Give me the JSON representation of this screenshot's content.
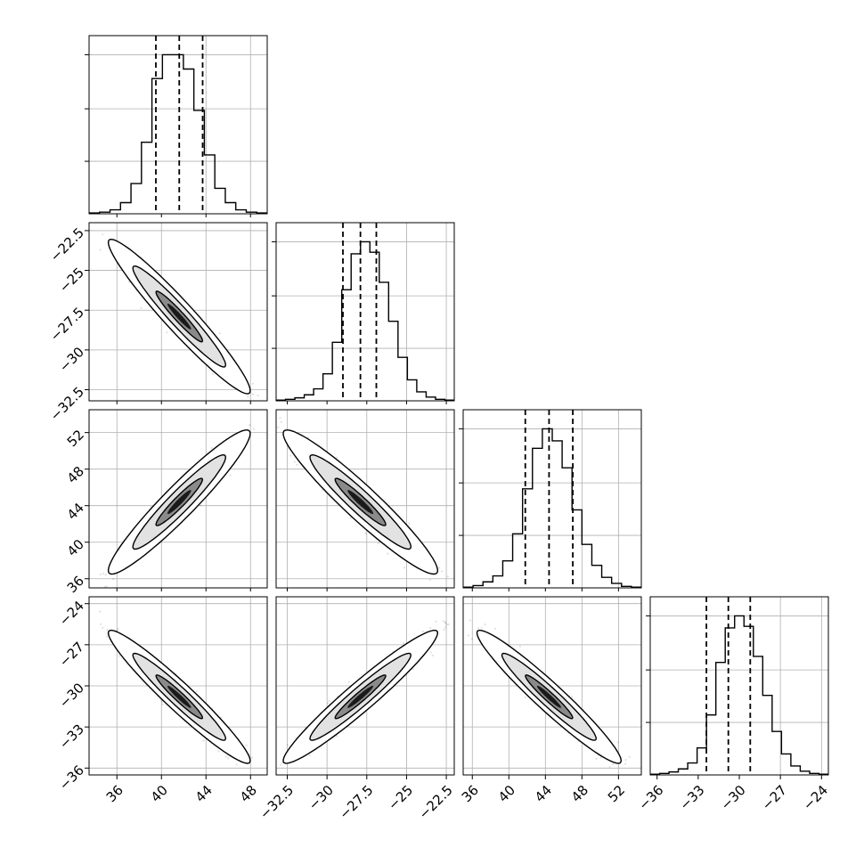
{
  "figure": {
    "type": "corner-plot"
  },
  "chart_data": {
    "type": "corner",
    "parameters": [
      {
        "median": 41.6,
        "q16": 39.5,
        "q84": 43.7,
        "sigma": 2.1,
        "range": [
          33.5,
          49.5
        ],
        "ticks": [
          36,
          40,
          44,
          48
        ],
        "hist": [
          1,
          2,
          5,
          14,
          38,
          90,
          170,
          200,
          200,
          182,
          130,
          74,
          32,
          14,
          5,
          2,
          1
        ],
        "gridlines": [
          44,
          48
        ]
      },
      {
        "median": -27.9,
        "q16": -29.0,
        "q84": -26.9,
        "sigma": 1.6,
        "range": [
          -33.2,
          -22.0
        ],
        "ticks": [
          -32.5,
          -30.0,
          -27.5,
          -25.0,
          -22.5
        ],
        "hist": [
          1,
          2,
          4,
          8,
          16,
          36,
          78,
          148,
          196,
          212,
          198,
          158,
          106,
          58,
          28,
          12,
          5,
          2,
          1
        ],
        "gridlines": [
          -25.0,
          -22.5
        ]
      },
      {
        "median": 44.4,
        "q16": 41.8,
        "q84": 47.0,
        "sigma": 2.6,
        "range": [
          35.0,
          54.5
        ],
        "ticks": [
          36,
          40,
          44,
          48,
          52
        ],
        "hist": [
          1,
          3,
          8,
          16,
          36,
          72,
          132,
          186,
          212,
          196,
          160,
          104,
          58,
          30,
          14,
          6,
          2,
          1
        ],
        "gridlines": [
          48,
          52
        ]
      },
      {
        "median": -30.8,
        "q16": -32.4,
        "q84": -29.2,
        "sigma": 1.6,
        "range": [
          -36.5,
          -23.5
        ],
        "ticks": [
          -36,
          -33,
          -30,
          -27,
          -24
        ],
        "hist": [
          1,
          2,
          4,
          8,
          16,
          36,
          80,
          150,
          196,
          212,
          198,
          158,
          106,
          58,
          28,
          12,
          5,
          2,
          1
        ],
        "gridlines": [
          -27,
          -24
        ]
      }
    ],
    "correlations": [
      {
        "row": 1,
        "col": 0,
        "rho": -0.96
      },
      {
        "row": 2,
        "col": 0,
        "rho": 0.95
      },
      {
        "row": 2,
        "col": 1,
        "rho": -0.95
      },
      {
        "row": 3,
        "col": 0,
        "rho": -0.96
      },
      {
        "row": 3,
        "col": 1,
        "rho": 0.96
      },
      {
        "row": 3,
        "col": 2,
        "rho": -0.96
      }
    ],
    "quantile_lines": [
      0.16,
      0.5,
      0.84
    ],
    "contour_levels": [
      0.39,
      0.86,
      0.99
    ],
    "grid": true,
    "title": "",
    "xlabel": "",
    "ylabel": ""
  }
}
